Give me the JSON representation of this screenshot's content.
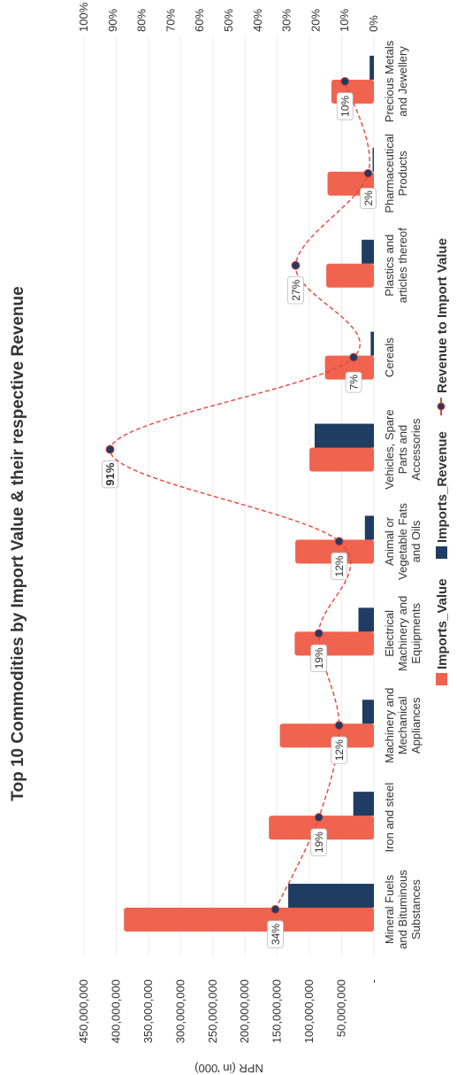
{
  "chart_data": {
    "type": "bar",
    "title": "Top 10 Commodities by Import Value & their respective Revenue",
    "ylabel": "NPR (in '000)",
    "ylim": [
      0,
      450000000
    ],
    "y2lim": [
      0,
      100
    ],
    "yticks": [
      "450,000,000",
      "400,000,000",
      "350,000,000",
      "300,000,000",
      "250,000,000",
      "200,000,000",
      "150,000,000",
      "100,000,000",
      "50,000,000",
      "-"
    ],
    "y2ticks": [
      "100%",
      "90%",
      "80%",
      "70%",
      "60%",
      "50%",
      "40%",
      "30%",
      "20%",
      "10%",
      "0%"
    ],
    "categories": [
      [
        "Mineral Fuels",
        "and Bituminous",
        "Substances"
      ],
      [
        "Iron and steel"
      ],
      [
        "Machinery and",
        "Mechanical",
        "Appliances"
      ],
      [
        "Electrical",
        "Machinery and",
        "Equipments"
      ],
      [
        "Animal or",
        "Vegetable Fats",
        "and Oils"
      ],
      [
        "Vehicles, Spare",
        "Parts and",
        "Accessories"
      ],
      [
        "Cereals"
      ],
      [
        "Plastics and",
        "articles thereof"
      ],
      [
        "Pharmaceutical",
        "Products"
      ],
      [
        "Precious Metals",
        "and Jewellery"
      ]
    ],
    "series": [
      {
        "name": "Imports_Value",
        "type": "bar",
        "color": "#f0634f",
        "values": [
          388000000,
          163000000,
          146000000,
          123000000,
          122000000,
          100000000,
          76000000,
          74000000,
          72000000,
          66000000
        ]
      },
      {
        "name": "Imports_Revenue",
        "type": "bar",
        "color": "#1f3c63",
        "values": [
          133000000,
          32000000,
          18000000,
          24000000,
          14000000,
          92000000,
          5000000,
          19000000,
          2000000,
          6600000
        ]
      },
      {
        "name": "Revenue to Import Value",
        "type": "line",
        "axis": "secondary",
        "color": "#e8443a",
        "values": [
          34,
          19,
          12,
          19,
          12,
          91,
          7,
          27,
          2,
          10
        ],
        "labels": [
          "34%",
          "19%",
          "12%",
          "19%",
          "12%",
          "91%",
          "7%",
          "27%",
          "2%",
          "10%"
        ]
      }
    ],
    "legend_position": "bottom",
    "grid": true
  }
}
